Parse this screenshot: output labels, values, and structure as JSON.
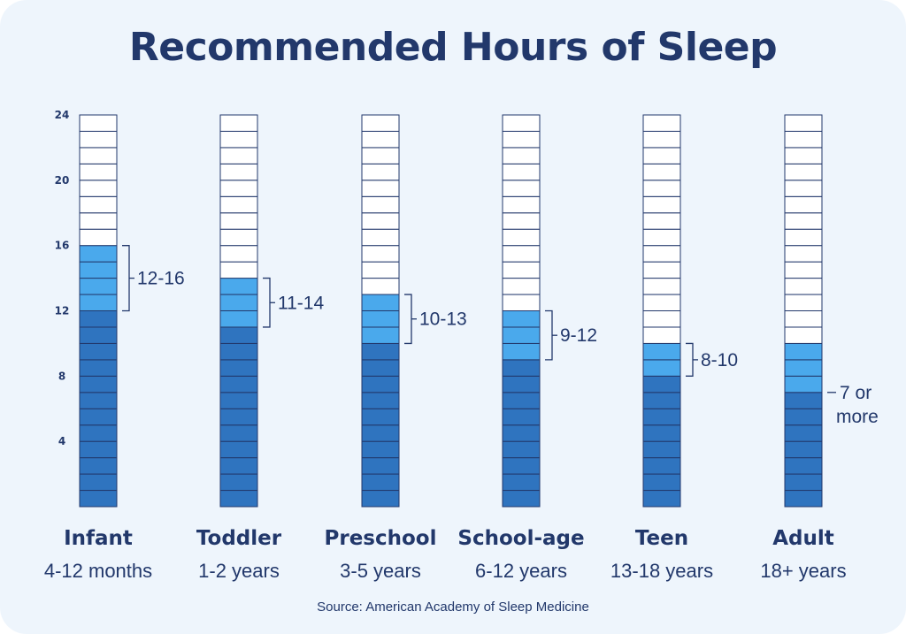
{
  "title": "Recommended Hours of Sleep",
  "source": "Source: American Academy of Sleep Medicine",
  "colors": {
    "background": "#eef5fc",
    "text": "#22386b",
    "minimum_fill": "#2f74bf",
    "range_fill": "#4aa9ec",
    "empty_fill": "#ffffff",
    "segment_line": "#22386b"
  },
  "chart_data": {
    "type": "bar",
    "title": "Recommended Hours of Sleep",
    "ylim": [
      0,
      24
    ],
    "yticks": [
      "4",
      "8",
      "12",
      "16",
      "20",
      "24"
    ],
    "grid": false,
    "categories": [
      "Infant",
      "Toddler",
      "Preschool",
      "School-age",
      "Teen",
      "Adult"
    ],
    "subcategories": [
      "4-12 months",
      "1-2 years",
      "3-5 years",
      "6-12 years",
      "13-18 years",
      "18+ years"
    ],
    "range_low": [
      12,
      11,
      10,
      9,
      8,
      7
    ],
    "range_high": [
      16,
      14,
      13,
      12,
      10,
      10
    ],
    "range_labels": [
      "12-16",
      "11-14",
      "10-13",
      "9-12",
      "8-10",
      "7 or\nmore"
    ]
  }
}
